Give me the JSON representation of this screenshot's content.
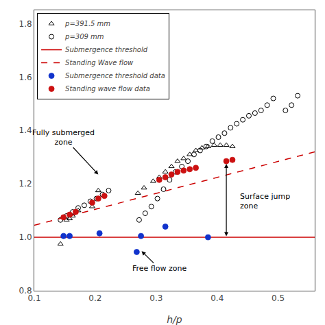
{
  "chart_data": {
    "type": "scatter",
    "xlabel": "h/p",
    "xlim": [
      0.1,
      0.56
    ],
    "ylim": [
      0.8,
      1.85
    ],
    "xticks": [
      0.1,
      0.2,
      0.3,
      0.4,
      0.5
    ],
    "yticks": [
      0.8,
      {
        "value": 1.0,
        "label": "1.0"
      },
      1.2,
      1.4,
      1.6,
      1.8
    ],
    "grid": false,
    "legend": "upper left",
    "series": [
      {
        "name": "p=391.5 mm",
        "type": "scatter",
        "marker": "triangle_open",
        "color": "#000000",
        "x": [
          0.143,
          0.153,
          0.163,
          0.172,
          0.158,
          0.195,
          0.205,
          0.27,
          0.28,
          0.295,
          0.305,
          0.315,
          0.325,
          0.335,
          0.345,
          0.355,
          0.365,
          0.375,
          0.385,
          0.395,
          0.405,
          0.415,
          0.425
        ],
        "values": [
          0.975,
          1.065,
          1.08,
          1.1,
          1.07,
          1.115,
          1.175,
          1.165,
          1.185,
          1.21,
          1.225,
          1.245,
          1.265,
          1.285,
          1.295,
          1.31,
          1.325,
          1.335,
          1.34,
          1.345,
          1.345,
          1.345,
          1.34
        ]
      },
      {
        "name": "p=309 mm",
        "type": "scatter",
        "marker": "circle_open",
        "color": "#000000",
        "x": [
          0.143,
          0.153,
          0.163,
          0.172,
          0.182,
          0.192,
          0.202,
          0.212,
          0.222,
          0.272,
          0.282,
          0.292,
          0.302,
          0.312,
          0.322,
          0.332,
          0.342,
          0.352,
          0.362,
          0.372,
          0.382,
          0.392,
          0.402,
          0.412,
          0.422,
          0.432,
          0.442,
          0.452,
          0.462,
          0.472,
          0.482,
          0.492,
          0.512,
          0.522,
          0.532
        ],
        "values": [
          1.065,
          1.08,
          1.095,
          1.11,
          1.12,
          1.135,
          1.145,
          1.16,
          1.175,
          1.065,
          1.09,
          1.115,
          1.145,
          1.18,
          1.215,
          1.245,
          1.265,
          1.285,
          1.31,
          1.325,
          1.34,
          1.36,
          1.375,
          1.39,
          1.41,
          1.425,
          1.44,
          1.455,
          1.465,
          1.475,
          1.495,
          1.52,
          1.475,
          1.495,
          1.53
        ]
      },
      {
        "name": "Submergence threshold",
        "type": "hline",
        "line_style": "solid",
        "color": "#cc0000",
        "y": 1.0
      },
      {
        "name": "Standing Wave flow",
        "type": "line",
        "line_style": "dashed",
        "color": "#cc0000",
        "x": [
          0.1,
          0.56
        ],
        "values": [
          1.045,
          1.32
        ]
      },
      {
        "name": "Submergence threshold data",
        "type": "scatter",
        "marker": "circle",
        "color": "#1133cc",
        "x": [
          0.148,
          0.158,
          0.207,
          0.268,
          0.275,
          0.315,
          0.385
        ],
        "values": [
          1.005,
          1.005,
          1.015,
          0.945,
          1.005,
          1.04,
          1.0
        ]
      },
      {
        "name": "Standing wave flow data",
        "type": "scatter",
        "marker": "circle",
        "color": "#cc1111",
        "x": [
          0.148,
          0.158,
          0.168,
          0.195,
          0.205,
          0.215,
          0.305,
          0.315,
          0.325,
          0.335,
          0.345,
          0.355,
          0.365,
          0.415,
          0.425
        ],
        "values": [
          1.075,
          1.085,
          1.095,
          1.13,
          1.145,
          1.155,
          1.215,
          1.225,
          1.235,
          1.245,
          1.25,
          1.255,
          1.26,
          1.285,
          1.29
        ]
      }
    ],
    "annotations": [
      {
        "text": "Fully submerged\nzone",
        "x": 0.148,
        "y": 1.375,
        "arrow_x": 0.205,
        "arrow_y": 1.235
      },
      {
        "text": "Free flow zone",
        "x": 0.305,
        "y": 0.883,
        "arrow_x": 0.276,
        "arrow_y": 0.948
      },
      {
        "type": "double_arrow",
        "x": 0.415,
        "y_start": 1.0,
        "y_end": 1.275
      },
      {
        "text": "Surface jump\nzone",
        "x": 0.435,
        "y": 1.135
      }
    ]
  }
}
